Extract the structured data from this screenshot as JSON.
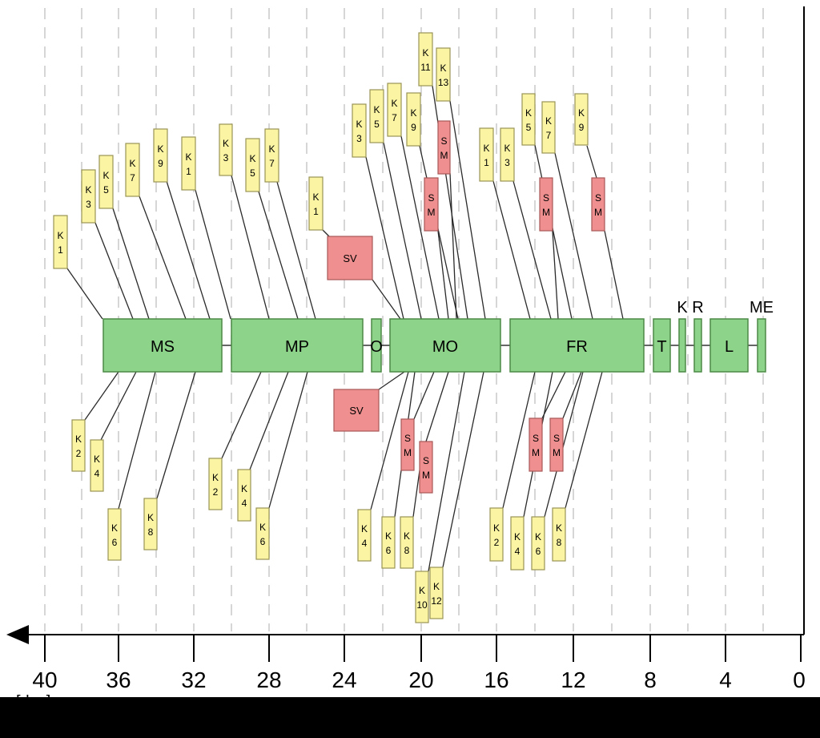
{
  "colors": {
    "background": "#ffffff",
    "footer": "#000000",
    "phase_fill": "#8ed38a",
    "phase_stroke": "#4c8a47",
    "tag_yellow": "#fbf5a3",
    "tag_yellow_stroke": "#9a9456",
    "tag_red": "#ef8f8f",
    "tag_red_stroke": "#a85858",
    "grid": "#c9c9c9",
    "axis": "#000000"
  },
  "axis": {
    "unit_label": "[day]",
    "ticks": [
      "40",
      "36",
      "32",
      "28",
      "24",
      "20",
      "16",
      "12",
      "8",
      "4",
      "0"
    ]
  },
  "phases": [
    {
      "label": "MS"
    },
    {
      "label": "MP"
    },
    {
      "label": "O"
    },
    {
      "label": "MO"
    },
    {
      "label": "FR"
    },
    {
      "label": "T"
    },
    {
      "label": "K"
    },
    {
      "label": "R"
    },
    {
      "label": "L"
    },
    {
      "label": "ME"
    }
  ],
  "tags": [
    {
      "phase": "MS",
      "label": "K1",
      "kind": "yellow"
    },
    {
      "phase": "MS",
      "label": "K3",
      "kind": "yellow"
    },
    {
      "phase": "MS",
      "label": "K5",
      "kind": "yellow"
    },
    {
      "phase": "MS",
      "label": "K7",
      "kind": "yellow"
    },
    {
      "phase": "MS",
      "label": "K9",
      "kind": "yellow"
    },
    {
      "phase": "MS",
      "label": "K1",
      "kind": "yellow"
    },
    {
      "phase": "MS",
      "label": "K2",
      "kind": "yellow"
    },
    {
      "phase": "MS",
      "label": "K4",
      "kind": "yellow"
    },
    {
      "phase": "MS",
      "label": "K6",
      "kind": "yellow"
    },
    {
      "phase": "MS",
      "label": "K8",
      "kind": "yellow"
    },
    {
      "phase": "MP",
      "label": "K3",
      "kind": "yellow"
    },
    {
      "phase": "MP",
      "label": "K5",
      "kind": "yellow"
    },
    {
      "phase": "MP",
      "label": "K7",
      "kind": "yellow"
    },
    {
      "phase": "MP",
      "label": "K1",
      "kind": "yellow"
    },
    {
      "phase": "MP",
      "label": "SV",
      "kind": "red"
    },
    {
      "phase": "MP",
      "label": "K2",
      "kind": "yellow"
    },
    {
      "phase": "MP",
      "label": "K4",
      "kind": "yellow"
    },
    {
      "phase": "MP",
      "label": "K6",
      "kind": "yellow"
    },
    {
      "phase": "MO",
      "label": "K3",
      "kind": "yellow"
    },
    {
      "phase": "MO",
      "label": "K5",
      "kind": "yellow"
    },
    {
      "phase": "MO",
      "label": "K7",
      "kind": "yellow"
    },
    {
      "phase": "MO",
      "label": "K9",
      "kind": "yellow"
    },
    {
      "phase": "MO",
      "label": "K11",
      "kind": "yellow"
    },
    {
      "phase": "MO",
      "label": "K13",
      "kind": "yellow"
    },
    {
      "phase": "MO",
      "label": "SM",
      "kind": "red"
    },
    {
      "phase": "MO",
      "label": "SM",
      "kind": "red"
    },
    {
      "phase": "MO",
      "label": "SV",
      "kind": "red"
    },
    {
      "phase": "MO",
      "label": "SM",
      "kind": "red"
    },
    {
      "phase": "MO",
      "label": "SM",
      "kind": "red"
    },
    {
      "phase": "MO",
      "label": "K4",
      "kind": "yellow"
    },
    {
      "phase": "MO",
      "label": "K6",
      "kind": "yellow"
    },
    {
      "phase": "MO",
      "label": "K8",
      "kind": "yellow"
    },
    {
      "phase": "MO",
      "label": "K10",
      "kind": "yellow"
    },
    {
      "phase": "MO",
      "label": "K12",
      "kind": "yellow"
    },
    {
      "phase": "FR",
      "label": "K1",
      "kind": "yellow"
    },
    {
      "phase": "FR",
      "label": "K3",
      "kind": "yellow"
    },
    {
      "phase": "FR",
      "label": "K5",
      "kind": "yellow"
    },
    {
      "phase": "FR",
      "label": "K7",
      "kind": "yellow"
    },
    {
      "phase": "FR",
      "label": "K9",
      "kind": "yellow"
    },
    {
      "phase": "FR",
      "label": "SM",
      "kind": "red"
    },
    {
      "phase": "FR",
      "label": "SM",
      "kind": "red"
    },
    {
      "phase": "FR",
      "label": "SM",
      "kind": "red"
    },
    {
      "phase": "FR",
      "label": "SM",
      "kind": "red"
    },
    {
      "phase": "FR",
      "label": "K2",
      "kind": "yellow"
    },
    {
      "phase": "FR",
      "label": "K4",
      "kind": "yellow"
    },
    {
      "phase": "FR",
      "label": "K6",
      "kind": "yellow"
    },
    {
      "phase": "FR",
      "label": "K8",
      "kind": "yellow"
    }
  ]
}
